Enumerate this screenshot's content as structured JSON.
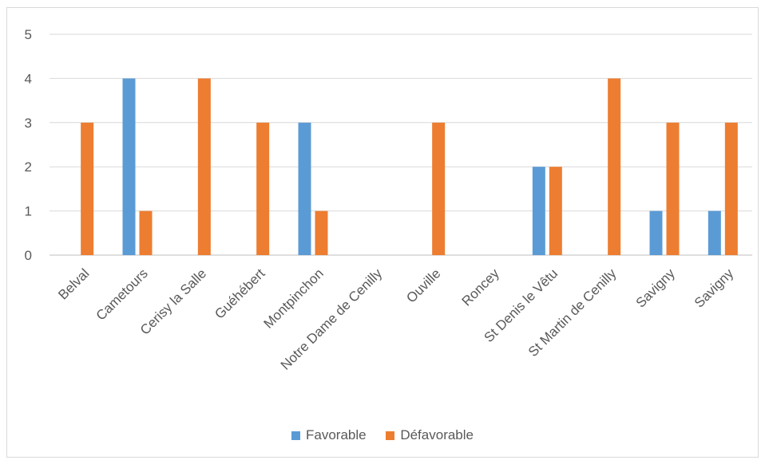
{
  "chart_data": {
    "type": "bar",
    "categories": [
      "Belval",
      "Cametours",
      "Cerisy la Salle",
      "Guéhébert",
      "Montpinchon",
      "Notre Dame de Cenilly",
      "Ouville",
      "Roncey",
      "St Denis le Vêtu",
      "St Martin de Cenilly",
      "Savigny",
      "Savigny"
    ],
    "series": [
      {
        "name": "Favorable",
        "color": "#5b9bd5",
        "values": [
          0,
          4,
          0,
          0,
          3,
          0,
          0,
          0,
          2,
          0,
          1,
          1
        ]
      },
      {
        "name": "Défavorable",
        "color": "#ed7d31",
        "values": [
          3,
          1,
          4,
          3,
          1,
          0,
          3,
          0,
          2,
          4,
          3,
          3
        ]
      }
    ],
    "yticks": [
      "0",
      "1",
      "2",
      "3",
      "4",
      "5"
    ],
    "ylim": [
      0,
      5
    ],
    "grid": true,
    "legend_position": "bottom",
    "title": "",
    "xlabel": "",
    "ylabel": ""
  }
}
